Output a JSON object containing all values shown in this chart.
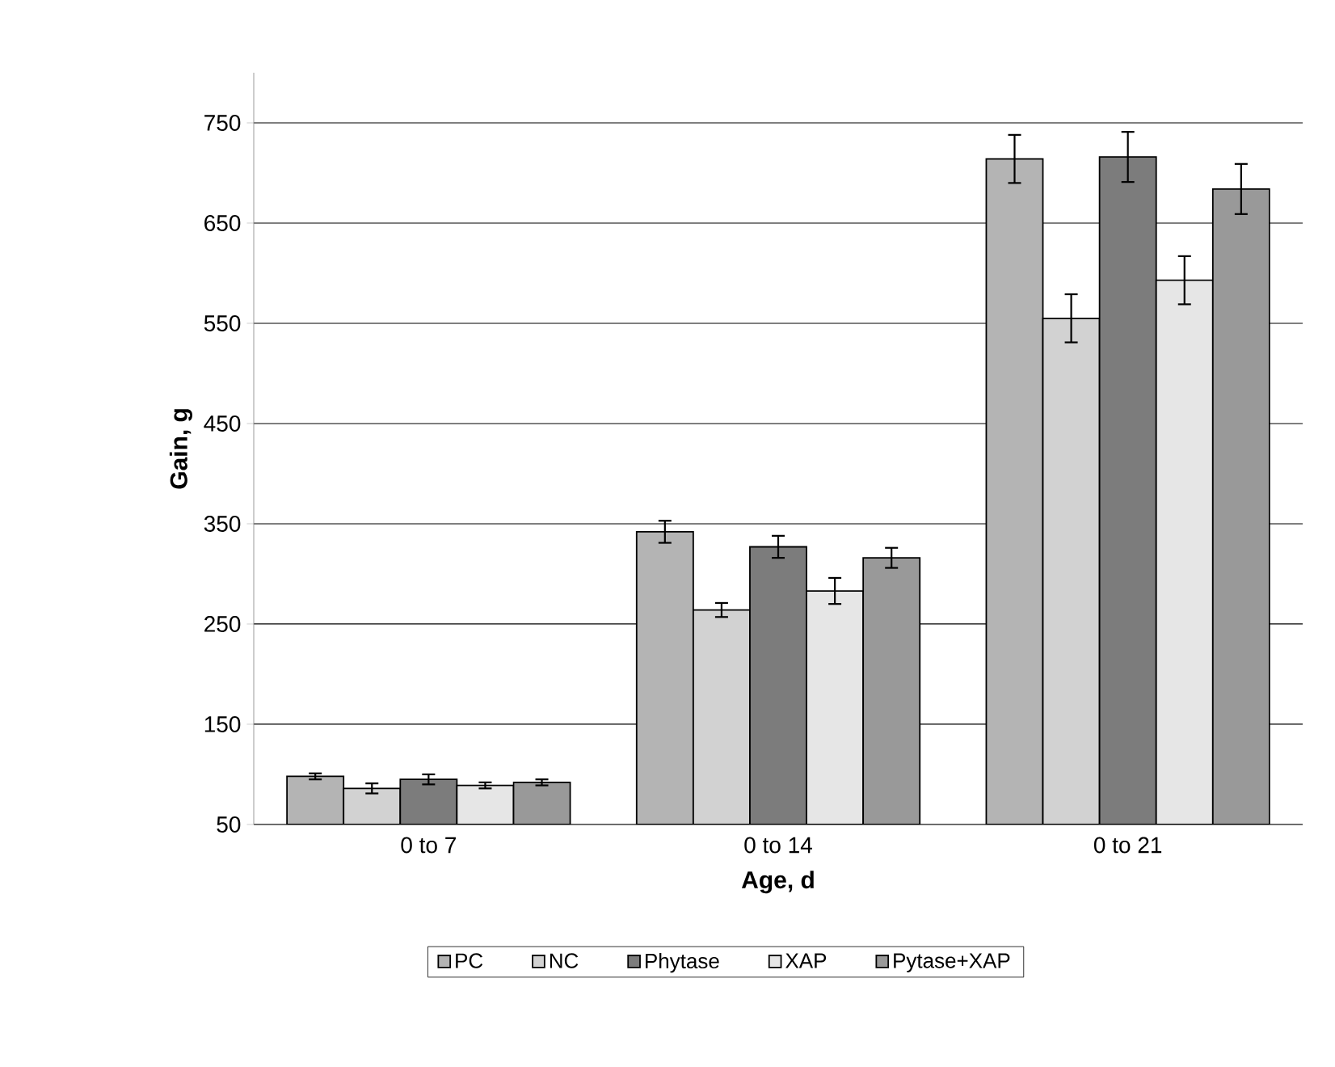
{
  "chart_data": {
    "type": "bar",
    "xlabel": "Age, d",
    "ylabel": "Gain, g",
    "categories": [
      "0 to 7",
      "0 to 14",
      "0 to 21"
    ],
    "series": [
      {
        "name": "PC",
        "color": "#b4b4b4",
        "values": [
          98,
          342,
          714
        ],
        "errors": [
          3,
          11,
          24
        ]
      },
      {
        "name": "NC",
        "color": "#d2d2d2",
        "values": [
          86,
          264,
          555
        ],
        "errors": [
          5,
          7,
          24
        ]
      },
      {
        "name": "Phytase",
        "color": "#7c7c7c",
        "values": [
          95,
          327,
          716
        ],
        "errors": [
          5,
          11,
          25
        ]
      },
      {
        "name": "XAP",
        "color": "#e6e6e6",
        "values": [
          89,
          283,
          593
        ],
        "errors": [
          3,
          13,
          24
        ]
      },
      {
        "name": "Pytase+XAP",
        "color": "#999999",
        "values": [
          92,
          316,
          684
        ],
        "errors": [
          3,
          10,
          25
        ]
      }
    ],
    "ylim": [
      50,
      800
    ],
    "yticks": [
      50,
      150,
      250,
      350,
      450,
      550,
      650,
      750
    ],
    "grid": "y",
    "legend": "bottom"
  }
}
